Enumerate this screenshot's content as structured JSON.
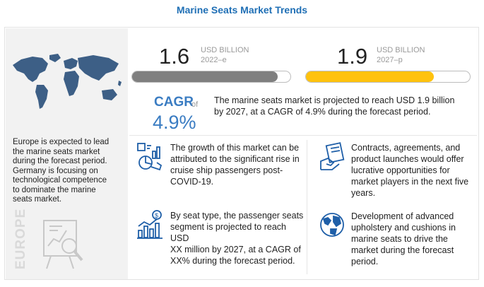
{
  "title": "Marine Seats Market Trends",
  "left_panel": {
    "lines": [
      "Europe is expected to lead",
      "the marine seats market",
      "during the forecast period.",
      "Germany is focusing on",
      "technological competence",
      "to dominate the marine",
      "seats market."
    ],
    "region_label": "EUROPE",
    "map_icon": "world-map-icon",
    "analysis_icon": "analysis-board-icon"
  },
  "metrics": [
    {
      "value": "1.6",
      "unit": "USD BILLION",
      "year": "2022–e",
      "progress": 0.92,
      "color": "#7f7f7f"
    },
    {
      "value": "1.9",
      "unit": "USD BILLION",
      "year": "2027–p",
      "progress": 0.78,
      "color": "#ffc20e"
    }
  ],
  "cagr": {
    "label": "CAGR",
    "of": "of",
    "value": "4.9%"
  },
  "summary": [
    "The marine seats market is projected to reach USD 1.9 billion",
    "by 2027, at a CAGR of 4.9% during the forecast period."
  ],
  "cards": [
    {
      "icon": "growth-chart-icon",
      "lines": [
        "The growth of this market can be",
        "attributed to the significant rise in",
        "cruise ship passengers post-",
        "COVID-19."
      ]
    },
    {
      "icon": "contract-handshake-icon",
      "lines": [
        "Contracts, agreements, and",
        "product launches would offer",
        "lucrative opportunities for",
        "market players in the next five",
        "years."
      ]
    },
    {
      "icon": "money-bar-chart-icon",
      "lines": [
        "By seat type, the passenger seats",
        "segment is projected to reach USD",
        "XX million by 2027, at a CAGR of",
        "XX% during the forecast period."
      ]
    },
    {
      "icon": "globe-icon",
      "lines": [
        "Development of advanced",
        "upholstery and cushions in",
        "marine seats to drive the",
        "market during the forecast",
        "period."
      ]
    }
  ],
  "colors": {
    "title": "#1f6fb5",
    "cagr": "#3a7cc2",
    "bar_grey": "#7f7f7f",
    "bar_yellow": "#ffc20e",
    "icon_blue": "#1f5fa8"
  }
}
